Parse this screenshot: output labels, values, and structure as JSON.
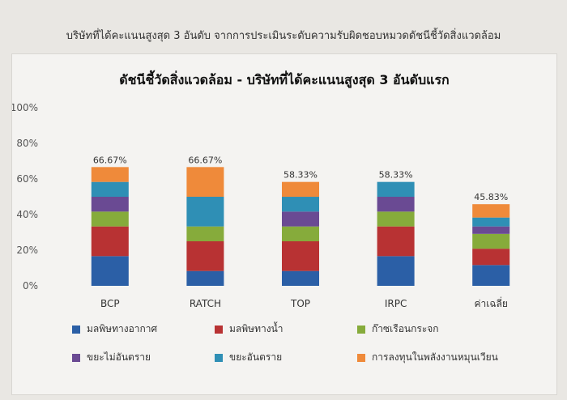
{
  "caption": "บริษัทที่ได้คะแนนสูงสุด 3 อันดับ จากการประเมินระดับความรับผิดชอบหมวดดัชนีชี้วัดสิ่งแวดล้อม",
  "chart_data": {
    "type": "bar",
    "stacked": true,
    "title": "ดัชนีชี้วัดสิ่งแวดล้อม - บริษัทที่ได้คะแนนสูงสุด 3 อันดับแรก",
    "categories": [
      "BCP",
      "RATCH",
      "TOP",
      "IRPC",
      "ค่าเฉลี่ย"
    ],
    "ylim": [
      0,
      100
    ],
    "yticks": [
      "0%",
      "20%",
      "40%",
      "60%",
      "80%",
      "100%"
    ],
    "grid": false,
    "legend_position": "bottom",
    "series": [
      {
        "name": "มลพิษทางอากาศ",
        "color": "#2b5fa6",
        "values": [
          16.67,
          8.33,
          8.33,
          16.67,
          11.67
        ]
      },
      {
        "name": "มลพิษทางน้ำ",
        "color": "#b83233",
        "values": [
          16.67,
          16.67,
          16.67,
          16.67,
          9.17
        ]
      },
      {
        "name": "ก๊าซเรือนกระจก",
        "color": "#86ab3b",
        "values": [
          8.33,
          8.33,
          8.33,
          8.33,
          8.33
        ]
      },
      {
        "name": "ขยะไม่อันตราย",
        "color": "#6a4a93",
        "values": [
          8.33,
          0,
          8.33,
          8.33,
          4.17
        ]
      },
      {
        "name": "ขยะอันตราย",
        "color": "#2f8fb5",
        "values": [
          8.33,
          16.67,
          8.33,
          8.33,
          5.0
        ]
      },
      {
        "name": "การลงทุนในพลังงานหมุนเวียน",
        "color": "#ef8a3a",
        "values": [
          8.34,
          16.67,
          8.34,
          0,
          7.49
        ]
      }
    ],
    "totals": [
      "66.67%",
      "66.67%",
      "58.33%",
      "58.33%",
      "45.83%"
    ]
  }
}
